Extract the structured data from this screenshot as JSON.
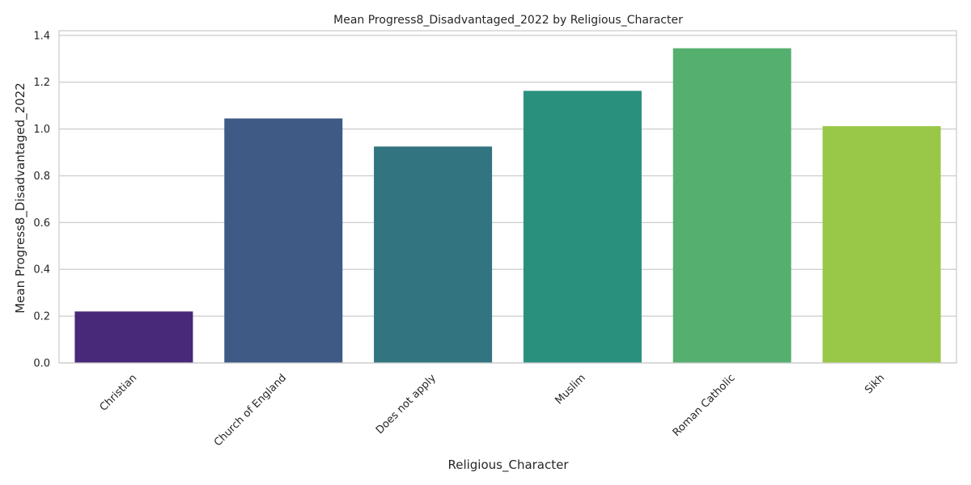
{
  "chart_data": {
    "type": "bar",
    "title": "Mean Progress8_Disadvantaged_2022 by Religious_Character",
    "xlabel": "Religious_Character",
    "ylabel": "Mean Progress8_Disadvantaged_2022",
    "categories": [
      "Christian",
      "Church of England",
      "Does not apply",
      "Muslim",
      "Roman Catholic",
      "Sikh"
    ],
    "values": [
      0.22,
      1.045,
      0.925,
      1.163,
      1.345,
      1.012
    ],
    "colors": [
      "#482878",
      "#3e5a85",
      "#327580",
      "#2a907e",
      "#55b06f",
      "#99c747"
    ],
    "ylim": [
      0,
      1.42
    ],
    "yticks": [
      "0.0",
      "0.2",
      "0.4",
      "0.6",
      "0.8",
      "1.0",
      "1.2",
      "1.4"
    ],
    "grid": "horizontal",
    "legend": "none",
    "x_tick_rotation": "45 degrees"
  }
}
